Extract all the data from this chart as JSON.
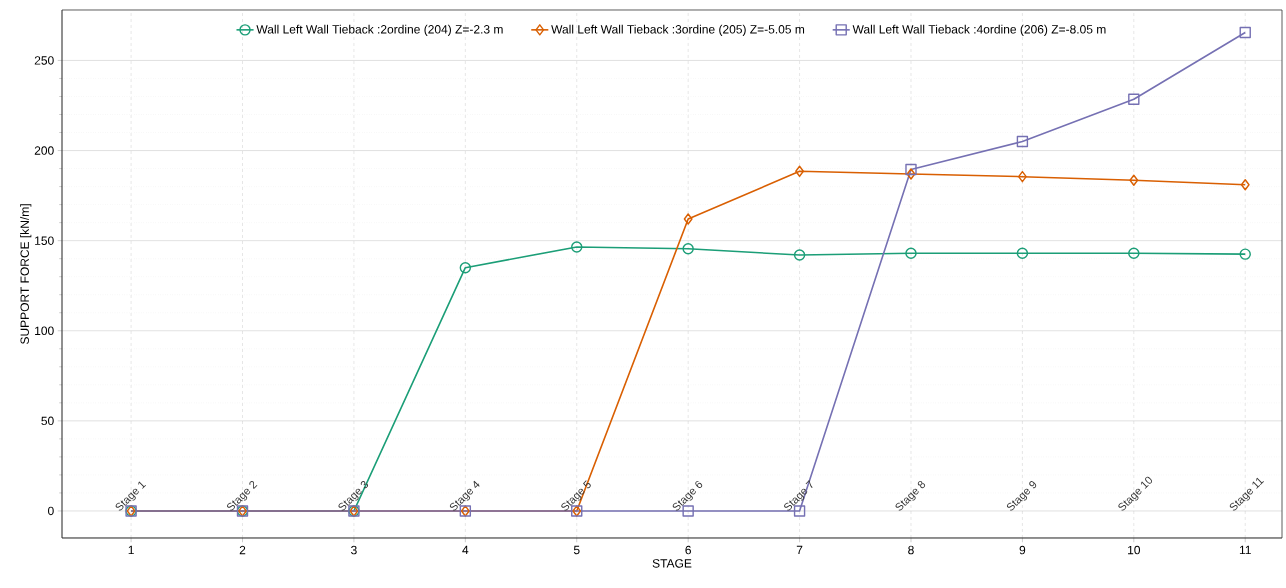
{
  "chart_data": {
    "type": "line",
    "xlabel": "STAGE",
    "ylabel": "SUPPORT FORCE [kN/m]",
    "x": [
      1,
      2,
      3,
      4,
      5,
      6,
      7,
      8,
      9,
      10,
      11
    ],
    "series": [
      {
        "name": "Wall Left Wall Tieback :2ordine (204) Z=-2.3 m",
        "color": "#1b9e77",
        "marker": "circle",
        "values": [
          0,
          0,
          0,
          135,
          146.5,
          145.5,
          142,
          143,
          143,
          143,
          142.5
        ]
      },
      {
        "name": "Wall Left Wall Tieback :3ordine (205) Z=-5.05 m",
        "color": "#d95f02",
        "marker": "diamond",
        "values": [
          0,
          0,
          0,
          0,
          0,
          162,
          188.5,
          187,
          185.5,
          183.5,
          181
        ]
      },
      {
        "name": "Wall Left Wall Tieback :4ordine (206) Z=-8.05 m",
        "color": "#7570b3",
        "marker": "square",
        "values": [
          0,
          0,
          0,
          0,
          0,
          0,
          0,
          189.5,
          205,
          228.5,
          265.5
        ]
      }
    ],
    "xlim": [
      0.38,
      11.33
    ],
    "ylim": [
      -15,
      278
    ],
    "xticks": [
      1,
      2,
      3,
      4,
      5,
      6,
      7,
      8,
      9,
      10,
      11
    ],
    "yticks": [
      0,
      50,
      100,
      150,
      200,
      250
    ],
    "grid": true,
    "legend": "top",
    "annotations": [
      "Stage 1",
      "Stage 2",
      "Stage 3",
      "Stage 4",
      "Stage 5",
      "Stage 6",
      "Stage 7",
      "Stage 8",
      "Stage 9",
      "Stage 10",
      "Stage 11"
    ]
  }
}
